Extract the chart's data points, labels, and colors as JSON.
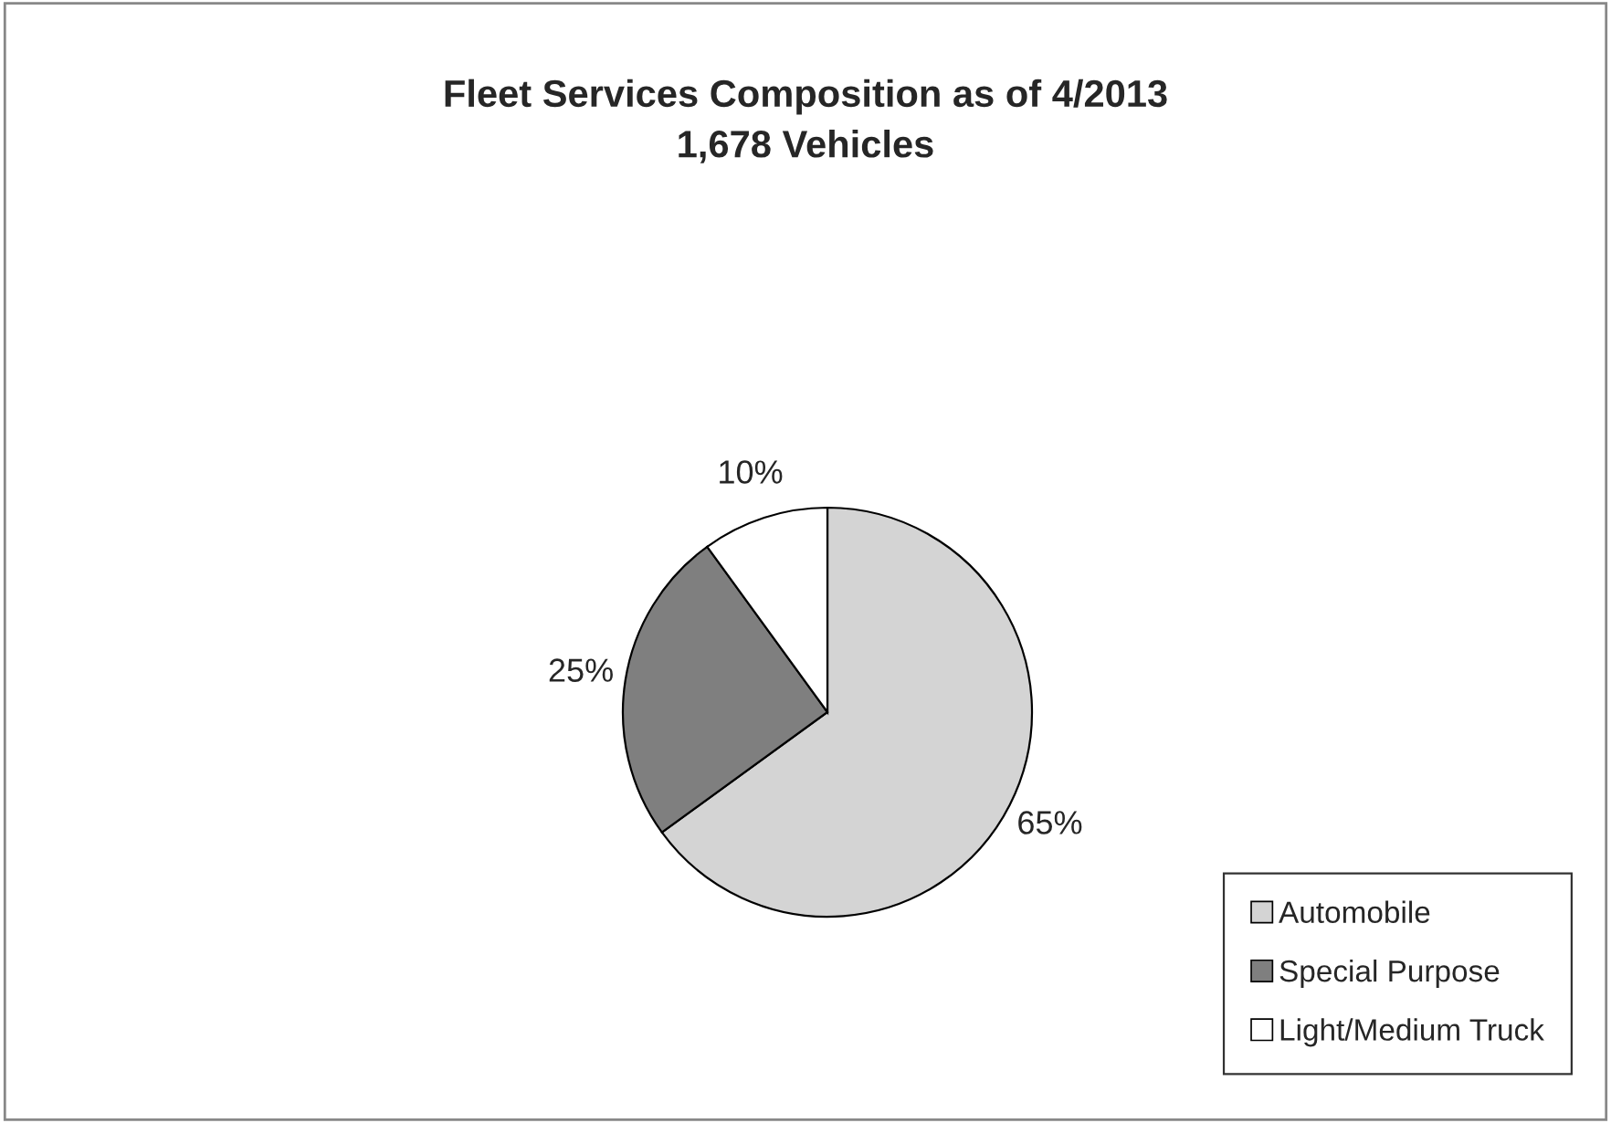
{
  "chart_data": {
    "type": "pie",
    "title": "Fleet Services Composition as of 4/2013",
    "subtitle": "1,678 Vehicles",
    "categories": [
      "Automobile",
      "Special Purpose",
      "Light/Medium Truck"
    ],
    "values": [
      65,
      25,
      10
    ],
    "colors": [
      "#d4d4d4",
      "#7f7f7f",
      "#ffffff"
    ],
    "value_labels": [
      "65%",
      "25%",
      "10%"
    ],
    "legend": "bottom right"
  }
}
